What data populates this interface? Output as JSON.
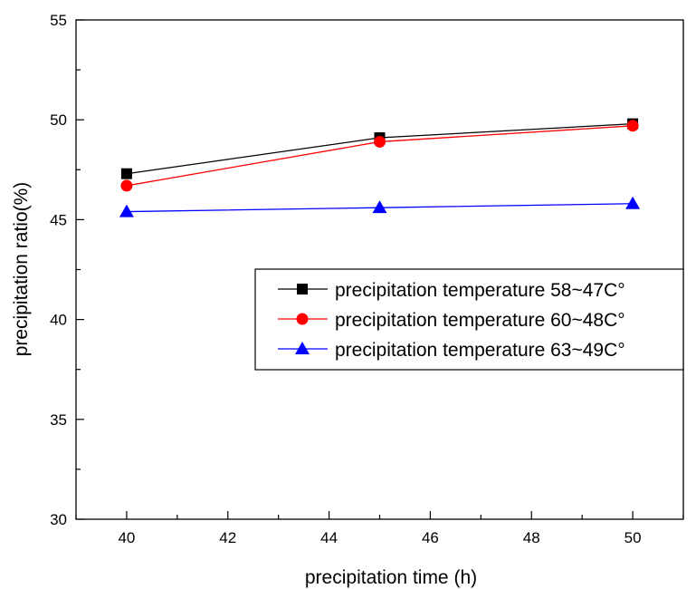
{
  "chart_data": {
    "type": "line",
    "xlabel": "precipitation time (h)",
    "ylabel": "precipitation ratio(%)",
    "xlim": [
      39,
      51
    ],
    "ylim": [
      30,
      55
    ],
    "xticks": [
      40,
      42,
      44,
      46,
      48,
      50
    ],
    "yticks": [
      30,
      35,
      40,
      45,
      50,
      55
    ],
    "grid": false,
    "legend_position": "right",
    "series": [
      {
        "name": "precipitation temperature 58~47C°",
        "color": "#000000",
        "marker": "square",
        "x": [
          40,
          45,
          50
        ],
        "y": [
          47.3,
          49.1,
          49.8
        ]
      },
      {
        "name": "precipitation temperature 60~48C°",
        "color": "#ff0000",
        "marker": "circle",
        "x": [
          40,
          45,
          50
        ],
        "y": [
          46.7,
          48.9,
          49.7
        ]
      },
      {
        "name": "precipitation temperature 63~49C°",
        "color": "#0000ff",
        "marker": "triangle",
        "x": [
          40,
          45,
          50
        ],
        "y": [
          45.4,
          45.6,
          45.8
        ]
      }
    ]
  }
}
